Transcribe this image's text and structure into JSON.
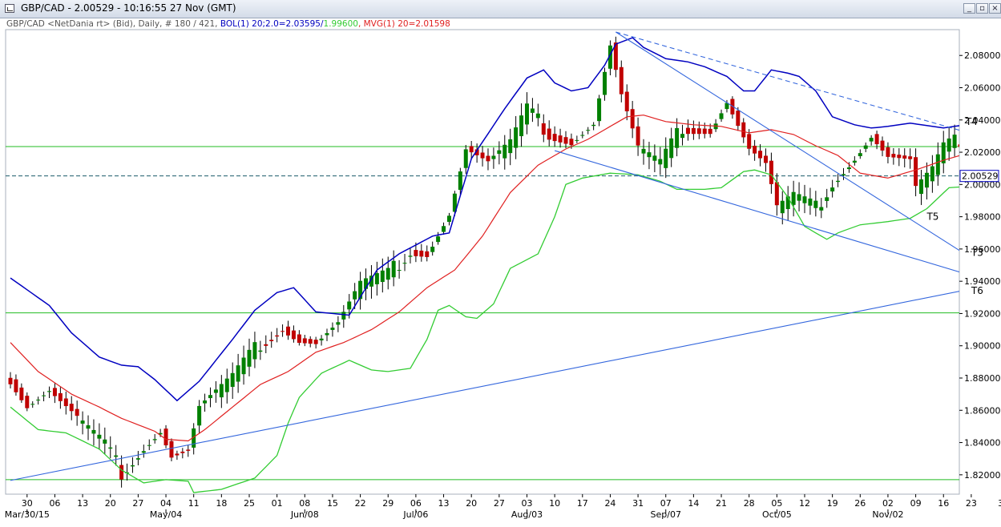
{
  "window": {
    "title": "GBP/CAD - 2.00529 - 10:16:55  27 Nov (GMT)",
    "buttons": [
      "_",
      "▫",
      "×"
    ]
  },
  "subtitle": {
    "instrument": "GBP/CAD <NetDania rt> (Bid), Daily, # 180 / 421, ",
    "bol": "BOL(1) 20;2.0=2.03595/",
    "bol_lower": "1.99600",
    "mvg": ", MVG(1) 20=2.01598"
  },
  "colors": {
    "up": "#008000",
    "down": "#c00000",
    "bol": "#0000c0",
    "bol_lower": "#33cc33",
    "mvg": "#e02020",
    "hline": "#22bb22",
    "trend": "#3366dd",
    "price_box": "#0000c0"
  },
  "current_price": "2.00529",
  "chart_data": {
    "type": "candlestick",
    "y_axis": {
      "side": "right",
      "min": 1.808,
      "max": 2.096,
      "ticks": [
        "2.08000",
        "2.06000",
        "2.04000",
        "2.02000",
        "2.00000",
        "1.98000",
        "1.96000",
        "1.94000",
        "1.92000",
        "1.90000",
        "1.88000",
        "1.86000",
        "1.84000",
        "1.82000"
      ]
    },
    "x_axis": {
      "day_labels": [
        "30",
        "06",
        "13",
        "20",
        "27",
        "04",
        "11",
        "18",
        "25",
        "01",
        "08",
        "15",
        "22",
        "29",
        "06",
        "13",
        "20",
        "27",
        "03",
        "10",
        "17",
        "24",
        "31",
        "07",
        "14",
        "21",
        "28",
        "05",
        "12",
        "19",
        "26",
        "02",
        "09",
        "16",
        "23",
        "30"
      ],
      "month_labels": [
        "Mar/30/15",
        "May/04",
        "Jun/08",
        "Jul/06",
        "Aug/03",
        "Sep/07",
        "Oct/05",
        "Nov/02"
      ]
    },
    "dates": [
      "2015-03-25",
      "2015-03-26",
      "2015-03-27",
      "2015-03-30",
      "2015-03-31",
      "2015-04-01",
      "2015-04-02",
      "2015-04-03",
      "2015-04-06",
      "2015-04-07",
      "2015-04-08",
      "2015-04-09",
      "2015-04-10",
      "2015-04-13",
      "2015-04-14",
      "2015-04-15",
      "2015-04-16",
      "2015-04-17",
      "2015-04-20",
      "2015-04-21",
      "2015-04-22",
      "2015-04-23",
      "2015-04-24",
      "2015-04-27",
      "2015-04-28",
      "2015-04-29",
      "2015-04-30",
      "2015-05-01",
      "2015-05-04",
      "2015-05-05",
      "2015-05-06",
      "2015-05-07",
      "2015-05-08",
      "2015-05-11",
      "2015-05-12",
      "2015-05-13",
      "2015-05-14",
      "2015-05-15",
      "2015-05-18",
      "2015-05-19",
      "2015-05-20",
      "2015-05-21",
      "2015-05-22",
      "2015-05-25",
      "2015-05-26",
      "2015-05-27",
      "2015-05-28",
      "2015-05-29",
      "2015-06-01",
      "2015-06-02",
      "2015-06-03",
      "2015-06-04",
      "2015-06-05",
      "2015-06-08",
      "2015-06-09",
      "2015-06-10",
      "2015-06-11",
      "2015-06-12",
      "2015-06-15",
      "2015-06-16",
      "2015-06-17",
      "2015-06-18",
      "2015-06-19",
      "2015-06-22",
      "2015-06-23",
      "2015-06-24",
      "2015-06-25",
      "2015-06-26",
      "2015-06-29",
      "2015-06-30",
      "2015-07-01",
      "2015-07-02",
      "2015-07-03",
      "2015-07-06",
      "2015-07-07",
      "2015-07-08",
      "2015-07-09",
      "2015-07-10",
      "2015-07-13",
      "2015-07-14",
      "2015-07-15",
      "2015-07-16",
      "2015-07-17",
      "2015-07-20",
      "2015-07-21",
      "2015-07-22",
      "2015-07-23",
      "2015-07-24",
      "2015-07-27",
      "2015-07-28",
      "2015-07-29",
      "2015-07-30",
      "2015-07-31",
      "2015-08-03",
      "2015-08-04",
      "2015-08-05",
      "2015-08-06",
      "2015-08-07",
      "2015-08-10",
      "2015-08-11",
      "2015-08-12",
      "2015-08-13",
      "2015-08-14",
      "2015-08-17",
      "2015-08-18",
      "2015-08-19",
      "2015-08-20",
      "2015-08-21",
      "2015-08-24",
      "2015-08-25",
      "2015-08-26",
      "2015-08-27",
      "2015-08-28",
      "2015-08-31",
      "2015-09-01",
      "2015-09-02",
      "2015-09-03",
      "2015-09-04",
      "2015-09-07",
      "2015-09-08",
      "2015-09-09",
      "2015-09-10",
      "2015-09-11",
      "2015-09-14",
      "2015-09-15",
      "2015-09-16",
      "2015-09-17",
      "2015-09-18",
      "2015-09-21",
      "2015-09-22",
      "2015-09-23",
      "2015-09-24",
      "2015-09-25",
      "2015-09-28",
      "2015-09-29",
      "2015-09-30",
      "2015-10-01",
      "2015-10-02",
      "2015-10-05",
      "2015-10-06",
      "2015-10-07",
      "2015-10-08",
      "2015-10-09",
      "2015-10-12",
      "2015-10-13",
      "2015-10-14",
      "2015-10-15",
      "2015-10-16",
      "2015-10-19",
      "2015-10-20",
      "2015-10-21",
      "2015-10-22",
      "2015-10-23",
      "2015-10-26",
      "2015-10-27",
      "2015-10-28",
      "2015-10-29",
      "2015-10-30",
      "2015-11-02",
      "2015-11-03",
      "2015-11-04",
      "2015-11-05",
      "2015-11-06",
      "2015-11-09",
      "2015-11-10",
      "2015-11-11",
      "2015-11-12",
      "2015-11-13",
      "2015-11-16",
      "2015-11-17",
      "2015-11-18",
      "2015-11-19",
      "2015-11-20",
      "2015-11-23",
      "2015-11-24",
      "2015-11-25",
      "2015-11-26",
      "2015-11-27"
    ],
    "anchors": {
      "close": [
        [
          "2015-03-25",
          1.879
        ],
        [
          "2015-03-30",
          1.863
        ],
        [
          "2015-04-03",
          1.872
        ],
        [
          "2015-04-09",
          1.858
        ],
        [
          "2015-04-17",
          1.838
        ],
        [
          "2015-04-22",
          1.822
        ],
        [
          "2015-04-28",
          1.838
        ],
        [
          "2015-05-01",
          1.848
        ],
        [
          "2015-05-05",
          1.832
        ],
        [
          "2015-05-08",
          1.835
        ],
        [
          "2015-05-12",
          1.862
        ],
        [
          "2015-05-20",
          1.88
        ],
        [
          "2015-05-27",
          1.902
        ],
        [
          "2015-06-02",
          1.912
        ],
        [
          "2015-06-05",
          1.904
        ],
        [
          "2015-06-10",
          1.902
        ],
        [
          "2015-06-16",
          1.914
        ],
        [
          "2015-06-22",
          1.938
        ],
        [
          "2015-06-29",
          1.944
        ],
        [
          "2015-07-03",
          1.96
        ],
        [
          "2015-07-08",
          1.958
        ],
        [
          "2015-07-14",
          1.982
        ],
        [
          "2015-07-17",
          2.022
        ],
        [
          "2015-07-23",
          2.013
        ],
        [
          "2015-07-29",
          2.025
        ],
        [
          "2015-08-03",
          2.046
        ],
        [
          "2015-08-07",
          2.032
        ],
        [
          "2015-08-13",
          2.027
        ],
        [
          "2015-08-19",
          2.038
        ],
        [
          "2015-08-24",
          2.086
        ],
        [
          "2015-08-26",
          2.055
        ],
        [
          "2015-08-31",
          2.022
        ],
        [
          "2015-09-04",
          2.012
        ],
        [
          "2015-09-10",
          2.036
        ],
        [
          "2015-09-17",
          2.034
        ],
        [
          "2015-09-22",
          2.052
        ],
        [
          "2015-09-28",
          2.022
        ],
        [
          "2015-10-01",
          2.012
        ],
        [
          "2015-10-05",
          1.985
        ],
        [
          "2015-10-08",
          1.992
        ],
        [
          "2015-10-14",
          1.985
        ],
        [
          "2015-10-19",
          2.002
        ],
        [
          "2015-10-23",
          2.017
        ],
        [
          "2015-10-28",
          2.03
        ],
        [
          "2015-11-02",
          2.017
        ],
        [
          "2015-11-06",
          2.014
        ],
        [
          "2015-11-09",
          1.997
        ],
        [
          "2015-11-12",
          2.008
        ],
        [
          "2015-11-16",
          2.022
        ],
        [
          "2015-11-20",
          2.03
        ],
        [
          "2015-11-23",
          2.018
        ],
        [
          "2015-11-24",
          2.007
        ],
        [
          "2015-11-27",
          2.0053
        ]
      ],
      "bol_upper": [
        [
          "2015-03-25",
          1.942
        ],
        [
          "2015-04-03",
          1.925
        ],
        [
          "2015-04-09",
          1.908
        ],
        [
          "2015-04-16",
          1.893
        ],
        [
          "2015-04-22",
          1.888
        ],
        [
          "2015-04-27",
          1.887
        ],
        [
          "2015-04-30",
          1.879
        ],
        [
          "2015-05-06",
          1.866
        ],
        [
          "2015-05-12",
          1.878
        ],
        [
          "2015-05-20",
          1.904
        ],
        [
          "2015-05-26",
          1.922
        ],
        [
          "2015-06-01",
          1.933
        ],
        [
          "2015-06-04",
          1.936
        ],
        [
          "2015-06-10",
          1.921
        ],
        [
          "2015-06-18",
          1.919
        ],
        [
          "2015-06-25",
          1.947
        ],
        [
          "2015-07-01",
          1.957
        ],
        [
          "2015-07-09",
          1.968
        ],
        [
          "2015-07-14",
          1.97
        ],
        [
          "2015-07-20",
          2.016
        ],
        [
          "2015-07-28",
          2.047
        ],
        [
          "2015-08-03",
          2.066
        ],
        [
          "2015-08-06",
          2.071
        ],
        [
          "2015-08-10",
          2.063
        ],
        [
          "2015-08-13",
          2.058
        ],
        [
          "2015-08-18",
          2.06
        ],
        [
          "2015-08-21",
          2.074
        ],
        [
          "2015-08-25",
          2.087
        ],
        [
          "2015-08-28",
          2.091
        ],
        [
          "2015-09-01",
          2.085
        ],
        [
          "2015-09-07",
          2.078
        ],
        [
          "2015-09-11",
          2.076
        ],
        [
          "2015-09-16",
          2.073
        ],
        [
          "2015-09-22",
          2.067
        ],
        [
          "2015-09-25",
          2.058
        ],
        [
          "2015-09-29",
          2.058
        ],
        [
          "2015-10-02",
          2.071
        ],
        [
          "2015-10-07",
          2.069
        ],
        [
          "2015-10-09",
          2.067
        ],
        [
          "2015-10-14",
          2.058
        ],
        [
          "2015-10-19",
          2.042
        ],
        [
          "2015-10-23",
          2.037
        ],
        [
          "2015-10-28",
          2.035
        ],
        [
          "2015-11-02",
          2.036
        ],
        [
          "2015-11-06",
          2.038
        ],
        [
          "2015-11-10",
          2.037
        ],
        [
          "2015-11-16",
          2.035
        ],
        [
          "2015-11-20",
          2.037
        ],
        [
          "2015-11-27",
          2.036
        ]
      ],
      "bol_lower": [
        [
          "2015-03-25",
          1.862
        ],
        [
          "2015-04-01",
          1.848
        ],
        [
          "2015-04-08",
          1.846
        ],
        [
          "2015-04-16",
          1.836
        ],
        [
          "2015-04-22",
          1.823
        ],
        [
          "2015-04-28",
          1.815
        ],
        [
          "2015-05-04",
          1.817
        ],
        [
          "2015-05-08",
          1.816
        ],
        [
          "2015-05-11",
          1.809
        ],
        [
          "2015-05-18",
          1.811
        ],
        [
          "2015-05-26",
          1.818
        ],
        [
          "2015-06-01",
          1.832
        ],
        [
          "2015-06-03",
          1.852
        ],
        [
          "2015-06-05",
          1.868
        ],
        [
          "2015-06-11",
          1.883
        ],
        [
          "2015-06-18",
          1.891
        ],
        [
          "2015-06-24",
          1.885
        ],
        [
          "2015-06-29",
          1.884
        ],
        [
          "2015-07-03",
          1.886
        ],
        [
          "2015-07-08",
          1.904
        ],
        [
          "2015-07-10",
          1.922
        ],
        [
          "2015-07-14",
          1.925
        ],
        [
          "2015-07-17",
          1.918
        ],
        [
          "2015-07-21",
          1.917
        ],
        [
          "2015-07-24",
          1.926
        ],
        [
          "2015-07-29",
          1.948
        ],
        [
          "2015-08-05",
          1.957
        ],
        [
          "2015-08-10",
          1.98
        ],
        [
          "2015-08-12",
          2.0
        ],
        [
          "2015-08-17",
          2.004
        ],
        [
          "2015-08-24",
          2.007
        ],
        [
          "2015-08-31",
          2.006
        ],
        [
          "2015-09-04",
          2.002
        ],
        [
          "2015-09-09",
          1.997
        ],
        [
          "2015-09-16",
          1.997
        ],
        [
          "2015-09-21",
          1.998
        ],
        [
          "2015-09-25",
          2.008
        ],
        [
          "2015-09-29",
          2.009
        ],
        [
          "2015-10-02",
          2.006
        ],
        [
          "2015-10-07",
          1.992
        ],
        [
          "2015-10-12",
          1.974
        ],
        [
          "2015-10-16",
          1.966
        ],
        [
          "2015-10-20",
          1.97
        ],
        [
          "2015-10-26",
          1.975
        ],
        [
          "2015-11-02",
          1.977
        ],
        [
          "2015-11-06",
          1.979
        ],
        [
          "2015-11-11",
          1.985
        ],
        [
          "2015-11-17",
          1.998
        ],
        [
          "2015-11-23",
          1.999
        ],
        [
          "2015-11-27",
          1.995
        ]
      ],
      "mvg": [
        [
          "2015-03-25",
          1.902
        ],
        [
          "2015-04-01",
          1.884
        ],
        [
          "2015-04-09",
          1.87
        ],
        [
          "2015-04-16",
          1.862
        ],
        [
          "2015-04-22",
          1.855
        ],
        [
          "2015-04-27",
          1.851
        ],
        [
          "2015-04-30",
          1.847
        ],
        [
          "2015-05-04",
          1.842
        ],
        [
          "2015-05-08",
          1.841
        ],
        [
          "2015-05-13",
          1.848
        ],
        [
          "2015-05-20",
          1.862
        ],
        [
          "2015-05-27",
          1.876
        ],
        [
          "2015-06-03",
          1.884
        ],
        [
          "2015-06-10",
          1.896
        ],
        [
          "2015-06-17",
          1.902
        ],
        [
          "2015-06-24",
          1.91
        ],
        [
          "2015-07-01",
          1.921
        ],
        [
          "2015-07-08",
          1.936
        ],
        [
          "2015-07-15",
          1.947
        ],
        [
          "2015-07-22",
          1.968
        ],
        [
          "2015-07-29",
          1.995
        ],
        [
          "2015-08-05",
          2.012
        ],
        [
          "2015-08-12",
          2.022
        ],
        [
          "2015-08-18",
          2.028
        ],
        [
          "2015-08-24",
          2.036
        ],
        [
          "2015-08-27",
          2.042
        ],
        [
          "2015-09-01",
          2.043
        ],
        [
          "2015-09-07",
          2.039
        ],
        [
          "2015-09-14",
          2.037
        ],
        [
          "2015-09-21",
          2.036
        ],
        [
          "2015-09-28",
          2.032
        ],
        [
          "2015-10-02",
          2.034
        ],
        [
          "2015-10-08",
          2.031
        ],
        [
          "2015-10-14",
          2.024
        ],
        [
          "2015-10-20",
          2.018
        ],
        [
          "2015-10-26",
          2.007
        ],
        [
          "2015-11-02",
          2.004
        ],
        [
          "2015-11-09",
          2.009
        ],
        [
          "2015-11-16",
          2.015
        ],
        [
          "2015-11-20",
          2.019
        ],
        [
          "2015-11-27",
          2.016
        ]
      ]
    },
    "horizontal_lines": [
      {
        "y": 2.0235,
        "style": "solid"
      },
      {
        "y": 2.0053,
        "style": "dashed"
      },
      {
        "y": 1.9204,
        "style": "solid"
      },
      {
        "y": 1.817,
        "style": "solid"
      }
    ],
    "trendlines": [
      {
        "label": "",
        "style": "solid",
        "points": [
          [
            "2015-03-25",
            1.8165
          ],
          [
            "2015-11-30",
            1.9395
          ]
        ]
      },
      {
        "label": "T3",
        "style": "solid",
        "points": [
          [
            "2015-08-10",
            2.021
          ],
          [
            "2015-11-30",
            1.9372
          ]
        ]
      },
      {
        "label": "T5",
        "style": "solid",
        "points": [
          [
            "2015-08-25",
            2.0945
          ],
          [
            "2015-11-30",
            1.941
          ]
        ]
      },
      {
        "label": "T4",
        "style": "dashed",
        "points": [
          [
            "2015-08-25",
            2.0945
          ],
          [
            "2015-11-30",
            2.0255
          ]
        ]
      }
    ],
    "labels": [
      {
        "text": "T4",
        "x": "2015-11-20",
        "y": 2.037
      },
      {
        "text": "T5",
        "x": "2015-11-11",
        "y": 1.978
      },
      {
        "text": "T3",
        "x": "2015-11-23",
        "y": 1.9558
      },
      {
        "text": "T6",
        "x": "2015-11-23",
        "y": 1.9322
      }
    ],
    "series": [
      {
        "name": "BOL(1) 20;2.0",
        "kind": "band-upper"
      },
      {
        "name": "BOL(1) 20;2.0",
        "kind": "band-lower"
      },
      {
        "name": "MVG(1) 20",
        "kind": "line"
      }
    ]
  }
}
